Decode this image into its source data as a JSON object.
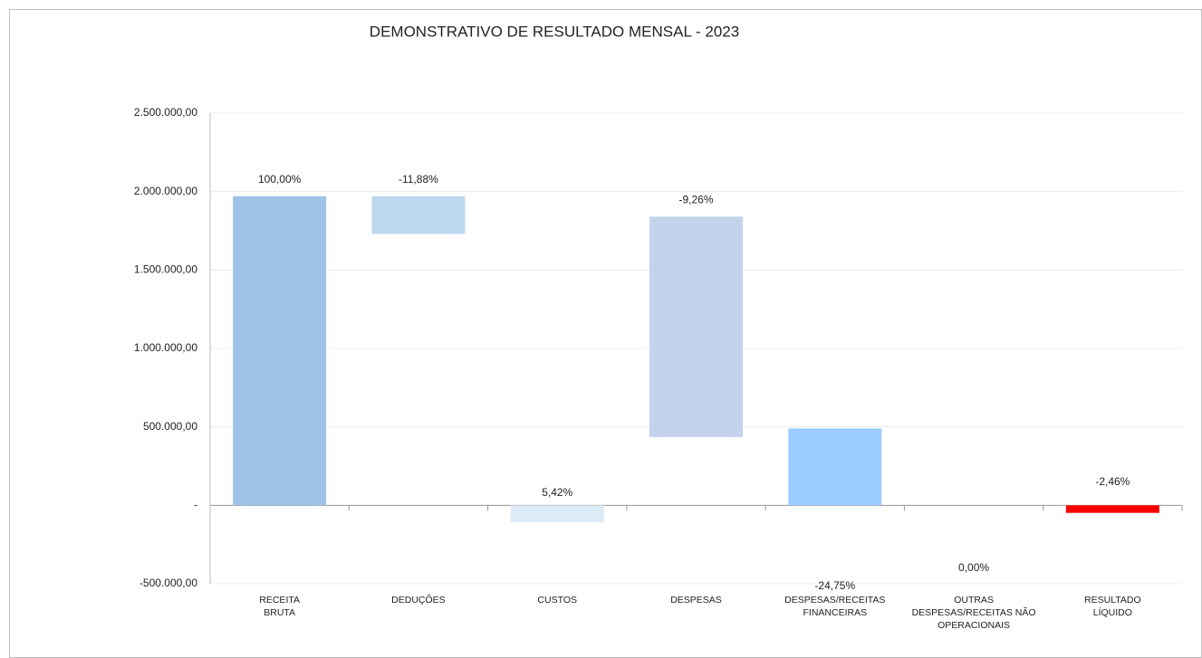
{
  "chart_data": {
    "type": "floating-bar",
    "title": "DEMONSTRATIVO DE RESULTADO MENSAL - 2023",
    "categories": [
      "RECEITA\nBRUTA",
      "DEDUÇÕES",
      "CUSTOS",
      "DESPESAS",
      "DESPESAS/RECEITAS\nFINANCEIRAS",
      "OUTRAS\nDESPESAS/RECEITAS NÃO\nOPERACIONAIS",
      "RESULTADO\nLÍQUIDO"
    ],
    "ranges": [
      [
        0,
        1970000
      ],
      [
        1730000,
        1970000
      ],
      [
        -107000,
        0
      ],
      [
        435000,
        1840000
      ],
      [
        0,
        490000
      ],
      [
        0,
        0
      ],
      [
        -48000,
        0
      ]
    ],
    "colors": [
      "#9dc3e6",
      "#bdd7ee",
      "#ddebf7",
      "#c3d3ec",
      "#9ccbff",
      "#b4c7e7",
      "#ff0000"
    ],
    "data_labels": [
      "100,00%",
      "-11,88%",
      "5,42%",
      "-9,26%",
      "-24,75%",
      "0,00%",
      "-2,46%"
    ],
    "ylim": [
      -500000,
      2500000
    ],
    "yticks": [
      {
        "value": -500000,
        "label": "-500.000,00"
      },
      {
        "value": 0,
        "label": "-"
      },
      {
        "value": 500000,
        "label": "500.000,00"
      },
      {
        "value": 1000000,
        "label": "1.000.000,00"
      },
      {
        "value": 1500000,
        "label": "1.500.000,00"
      },
      {
        "value": 2000000,
        "label": "2.000.000,00"
      },
      {
        "value": 2500000,
        "label": "2.500.000,00"
      }
    ],
    "grid": true
  }
}
